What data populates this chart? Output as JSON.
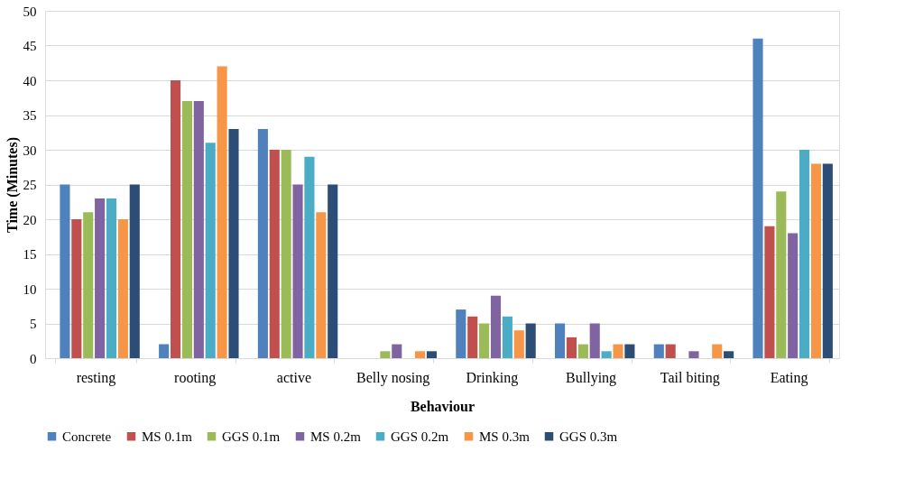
{
  "chart_data": {
    "type": "bar",
    "xlabel": "Behaviour",
    "ylabel": "Time (Minutes)",
    "categories": [
      "resting",
      "rooting",
      "active",
      "Belly nosing",
      "Drinking",
      "Bullying",
      "Tail biting",
      "Eating"
    ],
    "series": [
      {
        "name": "Concrete",
        "color": "#4f81bd",
        "values": [
          25,
          2,
          33,
          0,
          7,
          5,
          2,
          46
        ]
      },
      {
        "name": "MS 0.1m",
        "color": "#c0504d",
        "values": [
          20,
          40,
          30,
          0,
          6,
          3,
          2,
          19
        ]
      },
      {
        "name": "GGS 0.1m",
        "color": "#9bbb59",
        "values": [
          21,
          37,
          30,
          1,
          5,
          2,
          0,
          24
        ]
      },
      {
        "name": "MS 0.2m",
        "color": "#8064a2",
        "values": [
          23,
          37,
          25,
          2,
          9,
          5,
          1,
          18
        ]
      },
      {
        "name": "GGS 0.2m",
        "color": "#4bacc6",
        "values": [
          23,
          31,
          29,
          0,
          6,
          1,
          0,
          30
        ]
      },
      {
        "name": "MS 0.3m",
        "color": "#f79646",
        "values": [
          20,
          42,
          21,
          1,
          4,
          2,
          2,
          28
        ]
      },
      {
        "name": "GGS 0.3m",
        "color": "#2c4d75",
        "values": [
          25,
          33,
          25,
          1,
          5,
          2,
          1,
          28
        ]
      }
    ],
    "ylim": [
      0,
      50
    ],
    "yticks": [
      0,
      5,
      10,
      15,
      20,
      25,
      30,
      35,
      40,
      45,
      50
    ],
    "grid": "y",
    "legend": "bottom"
  }
}
